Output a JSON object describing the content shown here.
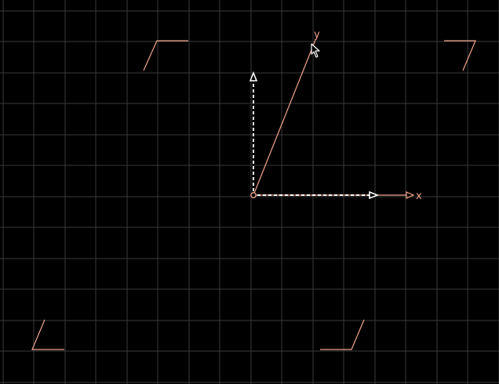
{
  "viewport": {
    "background": "#000000",
    "grid_color": "#3a3a3a",
    "accent_color": "#f2a58e",
    "guide_color": "#ffffff"
  },
  "axes": {
    "x_label": "x",
    "y_label": "y"
  },
  "icons": {
    "origin": "origin-circle-icon",
    "cursor": "mouse-pointer-icon",
    "x_arrow": "x-axis-arrowhead-icon",
    "guide_arrow": "guide-arrowhead-icon",
    "frame_corner": "frame-corner-bracket-icon"
  }
}
